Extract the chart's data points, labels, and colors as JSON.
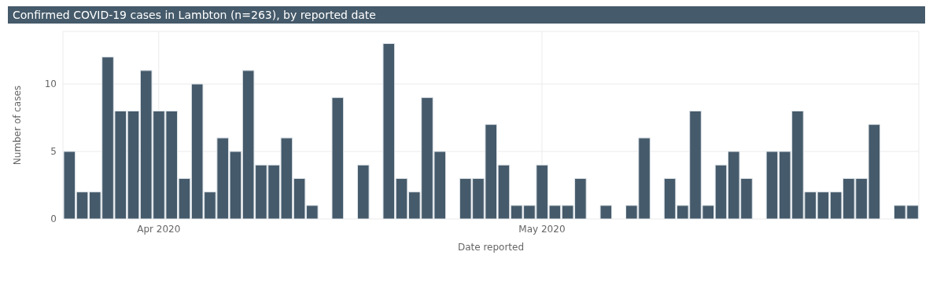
{
  "chart_data": {
    "type": "bar",
    "title": "Confirmed COVID-19 cases in Lambton (n=263), by reported date",
    "xlabel": "Date reported",
    "ylabel": "Number of cases",
    "x": [
      "2020-03-25",
      "2020-03-26",
      "2020-03-27",
      "2020-03-28",
      "2020-03-29",
      "2020-03-30",
      "2020-03-31",
      "2020-04-01",
      "2020-04-02",
      "2020-04-03",
      "2020-04-04",
      "2020-04-05",
      "2020-04-06",
      "2020-04-07",
      "2020-04-08",
      "2020-04-09",
      "2020-04-10",
      "2020-04-11",
      "2020-04-12",
      "2020-04-13",
      "2020-04-15",
      "2020-04-17",
      "2020-04-19",
      "2020-04-20",
      "2020-04-21",
      "2020-04-22",
      "2020-04-23",
      "2020-04-25",
      "2020-04-26",
      "2020-04-27",
      "2020-04-28",
      "2020-04-29",
      "2020-04-30",
      "2020-05-01",
      "2020-05-02",
      "2020-05-03",
      "2020-05-04",
      "2020-05-06",
      "2020-05-08",
      "2020-05-09",
      "2020-05-11",
      "2020-05-12",
      "2020-05-13",
      "2020-05-14",
      "2020-05-15",
      "2020-05-16",
      "2020-05-17",
      "2020-05-19",
      "2020-05-20",
      "2020-05-21",
      "2020-05-22",
      "2020-05-23",
      "2020-05-24",
      "2020-05-25",
      "2020-05-26",
      "2020-05-27",
      "2020-05-29",
      "2020-05-30"
    ],
    "values": [
      5,
      2,
      2,
      12,
      8,
      8,
      11,
      8,
      8,
      3,
      10,
      2,
      6,
      5,
      11,
      4,
      4,
      6,
      3,
      1,
      9,
      4,
      13,
      3,
      2,
      9,
      5,
      3,
      3,
      7,
      4,
      1,
      1,
      4,
      1,
      1,
      3,
      1,
      1,
      6,
      3,
      1,
      8,
      1,
      4,
      5,
      3,
      5,
      5,
      8,
      2,
      2,
      2,
      3,
      3,
      7,
      1,
      1
    ],
    "color": "#455a6a",
    "xlim": [
      "2020-03-24T12:00",
      "2020-05-30T12:00"
    ],
    "xticks": [
      {
        "value": "2020-04-01",
        "label": "Apr 2020"
      },
      {
        "value": "2020-05-01",
        "label": "May 2020"
      }
    ],
    "ylim": [
      0,
      13.9
    ],
    "yticks": [
      0,
      5,
      10
    ],
    "grid": true
  }
}
